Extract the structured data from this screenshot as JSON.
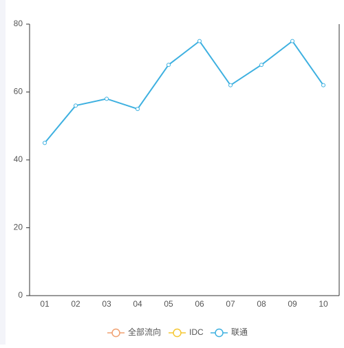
{
  "chart_data": {
    "type": "line",
    "categories": [
      "01",
      "02",
      "03",
      "04",
      "05",
      "06",
      "07",
      "08",
      "09",
      "10"
    ],
    "series": [
      {
        "name": "全部流向",
        "color": "#f0a070",
        "values": [
          null,
          null,
          null,
          null,
          null,
          null,
          null,
          null,
          null,
          null
        ]
      },
      {
        "name": "IDC",
        "color": "#f5c732",
        "values": [
          null,
          null,
          null,
          null,
          null,
          null,
          null,
          null,
          null,
          null
        ]
      },
      {
        "name": "联通",
        "color": "#3db0e0",
        "values": [
          45,
          56,
          58,
          55,
          68,
          75,
          62,
          68,
          75,
          62
        ]
      }
    ],
    "ylim": [
      0,
      80
    ],
    "yticks": [
      0,
      20,
      40,
      60,
      80
    ],
    "legend": "bottom"
  }
}
